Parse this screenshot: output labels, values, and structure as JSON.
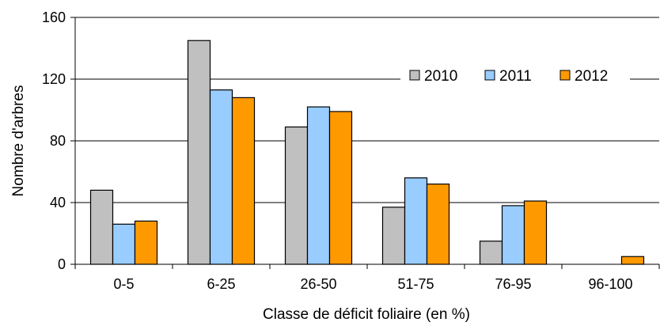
{
  "chart_data": {
    "type": "bar",
    "title": "",
    "xlabel": "Classe de déficit foliaire (en %)",
    "ylabel": "Nombre d'arbres",
    "ylim": [
      0,
      160
    ],
    "yticks": [
      "0",
      "40",
      "80",
      "120",
      "160"
    ],
    "grid": true,
    "legend_position": "top-right",
    "categories": [
      "0-5",
      "6-25",
      "26-50",
      "51-75",
      "76-95",
      "96-100"
    ],
    "series": [
      {
        "name": "2010",
        "color": "#c0c0c0",
        "values": [
          48,
          145,
          89,
          37,
          15,
          0
        ]
      },
      {
        "name": "2011",
        "color": "#99ccff",
        "values": [
          26,
          113,
          102,
          56,
          38,
          0
        ]
      },
      {
        "name": "2012",
        "color": "#ff9900",
        "values": [
          28,
          108,
          99,
          52,
          41,
          5
        ]
      }
    ]
  }
}
